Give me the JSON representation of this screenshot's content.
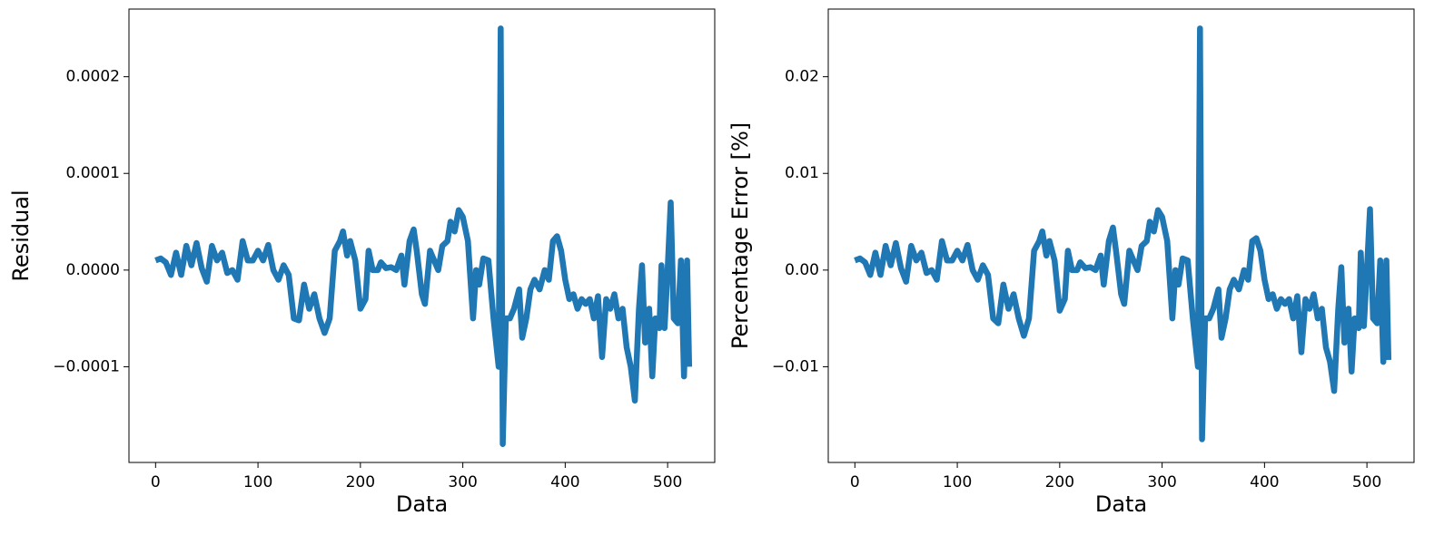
{
  "chart_data": [
    {
      "type": "line",
      "ylabel": "Residual",
      "xlabel": "Data",
      "color": "#1f77b4",
      "xlim": [
        -26,
        546
      ],
      "xticks": [
        0,
        100,
        200,
        300,
        400,
        500
      ],
      "ylim": [
        -0.000199,
        0.00027
      ],
      "yticks": [
        {
          "value": -0.0001,
          "label": "−0.0001"
        },
        {
          "value": 0,
          "label": "0.0000"
        },
        {
          "value": 0.0001,
          "label": "0.0001"
        },
        {
          "value": 0.0002,
          "label": "0.0002"
        }
      ],
      "x": [
        0,
        5,
        10,
        15,
        20,
        25,
        30,
        35,
        40,
        45,
        50,
        55,
        60,
        65,
        70,
        75,
        80,
        85,
        90,
        95,
        100,
        105,
        110,
        115,
        120,
        125,
        130,
        135,
        140,
        145,
        150,
        155,
        160,
        165,
        170,
        175,
        180,
        183,
        187,
        190,
        195,
        200,
        205,
        208,
        212,
        217,
        220,
        225,
        230,
        235,
        240,
        243,
        248,
        252,
        255,
        260,
        263,
        268,
        272,
        276,
        280,
        285,
        288,
        292,
        296,
        300,
        305,
        310,
        313,
        316,
        320,
        325,
        330,
        335,
        337,
        339,
        342,
        346,
        350,
        355,
        358,
        362,
        366,
        370,
        375,
        380,
        384,
        388,
        392,
        396,
        400,
        404,
        408,
        412,
        416,
        420,
        424,
        428,
        432,
        436,
        440,
        444,
        448,
        452,
        456,
        460,
        464,
        468,
        472,
        475,
        478,
        482,
        485,
        488,
        492,
        494,
        497,
        500,
        503,
        506,
        510,
        513,
        516,
        519,
        521
      ],
      "values": [
        1e-05,
        1.2e-05,
        8e-06,
        -5e-06,
        1.8e-05,
        -5e-06,
        2.5e-05,
        5e-06,
        2.8e-05,
        2e-06,
        -1.2e-05,
        2.5e-05,
        1e-05,
        1.8e-05,
        -3e-06,
        0,
        -1e-05,
        3e-05,
        1e-05,
        1e-05,
        2e-05,
        1e-05,
        2.6e-05,
        0,
        -1e-05,
        5e-06,
        -5e-06,
        -5e-05,
        -5.2e-05,
        -1.5e-05,
        -4e-05,
        -2.5e-05,
        -5e-05,
        -6.5e-05,
        -5e-05,
        2e-05,
        3e-05,
        4e-05,
        1.5e-05,
        3e-05,
        1e-05,
        -4e-05,
        -3e-05,
        2e-05,
        0,
        0,
        8e-06,
        2e-06,
        3e-06,
        0,
        1.5e-05,
        -1.5e-05,
        3e-05,
        4.2e-05,
        2e-05,
        -2.5e-05,
        -3.5e-05,
        2e-05,
        1e-05,
        0,
        2.5e-05,
        3e-05,
        5e-05,
        4e-05,
        6.2e-05,
        5.5e-05,
        3e-05,
        -5e-05,
        0,
        -1.5e-05,
        1.2e-05,
        1e-05,
        -5e-05,
        -0.0001,
        0.00025,
        -0.00018,
        -5e-05,
        -5e-05,
        -4e-05,
        -2e-05,
        -7e-05,
        -5e-05,
        -2e-05,
        -1e-05,
        -2e-05,
        0,
        -1e-05,
        3e-05,
        3.5e-05,
        2e-05,
        -1e-05,
        -3e-05,
        -2.5e-05,
        -4e-05,
        -3e-05,
        -3.5e-05,
        -3e-05,
        -5e-05,
        -2.7e-05,
        -9e-05,
        -3e-05,
        -4e-05,
        -2.5e-05,
        -5e-05,
        -4e-05,
        -8e-05,
        -0.0001,
        -0.000135,
        -4e-05,
        5e-06,
        -7.5e-05,
        -4e-05,
        -0.00011,
        -5e-05,
        -6e-05,
        5e-06,
        -6e-05,
        0,
        7e-05,
        -5e-05,
        -5.5e-05,
        1e-05,
        -0.00011,
        1e-05,
        -0.0001
      ]
    },
    {
      "type": "line",
      "ylabel": "Percentage Error [%]",
      "xlabel": "Data",
      "color": "#1f77b4",
      "xlim": [
        -26,
        546
      ],
      "xticks": [
        0,
        100,
        200,
        300,
        400,
        500
      ],
      "ylim": [
        -0.0199,
        0.027
      ],
      "yticks": [
        {
          "value": -0.01,
          "label": "−0.01"
        },
        {
          "value": 0,
          "label": "0.00"
        },
        0.01,
        0.02
      ],
      "x": [
        0,
        5,
        10,
        15,
        20,
        25,
        30,
        35,
        40,
        45,
        50,
        55,
        60,
        65,
        70,
        75,
        80,
        85,
        90,
        95,
        100,
        105,
        110,
        115,
        120,
        125,
        130,
        135,
        140,
        145,
        150,
        155,
        160,
        165,
        170,
        175,
        180,
        183,
        187,
        190,
        195,
        200,
        205,
        208,
        212,
        217,
        220,
        225,
        230,
        235,
        240,
        243,
        248,
        252,
        255,
        260,
        263,
        268,
        272,
        276,
        280,
        285,
        288,
        292,
        296,
        300,
        305,
        310,
        313,
        316,
        320,
        325,
        330,
        335,
        337,
        339,
        342,
        346,
        350,
        355,
        358,
        362,
        366,
        370,
        375,
        380,
        384,
        388,
        392,
        396,
        400,
        404,
        408,
        412,
        416,
        420,
        424,
        428,
        432,
        436,
        440,
        444,
        448,
        452,
        456,
        460,
        464,
        468,
        472,
        475,
        478,
        482,
        485,
        488,
        492,
        494,
        497,
        500,
        503,
        506,
        510,
        513,
        516,
        519,
        521
      ],
      "values": [
        0.001,
        0.0012,
        0.0008,
        -0.0005,
        0.0018,
        -0.0005,
        0.0025,
        0.0005,
        0.0028,
        0.0002,
        -0.0012,
        0.0025,
        0.001,
        0.0018,
        -0.0003,
        0,
        -0.001,
        0.003,
        0.001,
        0.001,
        0.002,
        0.001,
        0.0026,
        0,
        -0.001,
        0.0005,
        -0.0005,
        -0.005,
        -0.0055,
        -0.0015,
        -0.004,
        -0.0025,
        -0.005,
        -0.0068,
        -0.005,
        0.002,
        0.003,
        0.004,
        0.0015,
        0.003,
        0.001,
        -0.0042,
        -0.003,
        0.002,
        0,
        0,
        0.0008,
        0.0002,
        0.0003,
        0,
        0.0015,
        -0.0015,
        0.003,
        0.0044,
        0.002,
        -0.0025,
        -0.0035,
        0.002,
        0.001,
        0,
        0.0025,
        0.003,
        0.005,
        0.004,
        0.0062,
        0.0055,
        0.003,
        -0.005,
        0,
        -0.0015,
        0.0012,
        0.001,
        -0.005,
        -0.01,
        0.025,
        -0.0175,
        -0.005,
        -0.005,
        -0.004,
        -0.002,
        -0.007,
        -0.005,
        -0.002,
        -0.001,
        -0.002,
        0,
        -0.001,
        0.003,
        0.0033,
        0.002,
        -0.001,
        -0.003,
        -0.0025,
        -0.004,
        -0.003,
        -0.0035,
        -0.003,
        -0.005,
        -0.0027,
        -0.0085,
        -0.003,
        -0.004,
        -0.0025,
        -0.005,
        -0.004,
        -0.008,
        -0.0095,
        -0.0125,
        -0.004,
        0.0003,
        -0.0075,
        -0.004,
        -0.0105,
        -0.005,
        -0.006,
        0.0018,
        -0.0058,
        0,
        0.0063,
        -0.005,
        -0.0055,
        0.001,
        -0.0095,
        0.001,
        -0.0093
      ]
    }
  ]
}
